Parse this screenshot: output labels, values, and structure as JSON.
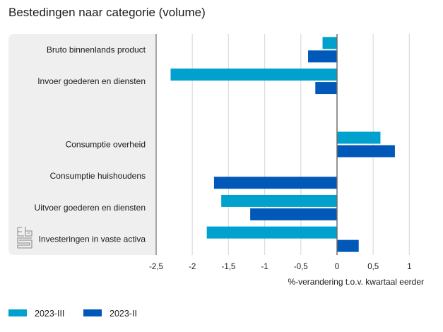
{
  "chart_data": {
    "type": "bar",
    "orientation": "horizontal",
    "title": "Bestedingen naar categorie (volume)",
    "xlabel": "%-verandering t.o.v. kwartaal eerder",
    "ylabel": "",
    "xlim": [
      -2.5,
      1
    ],
    "xticks": [
      -2.5,
      -2,
      -1.5,
      -1,
      -0.5,
      0,
      0.5,
      1
    ],
    "xtick_labels": [
      "-2,5",
      "-2",
      "-1,5",
      "-1",
      "-0,5",
      "0",
      "0,5",
      "1"
    ],
    "grid": true,
    "legend_position": "bottom-left",
    "categories": [
      "Bruto binnenlands product",
      "Invoer goederen en diensten",
      "",
      "Consumptie overheid",
      "Consumptie huishoudens",
      "Uitvoer goederen en diensten",
      "Investeringen in vaste activa"
    ],
    "series": [
      {
        "name": "2023-III",
        "color": "#00a1cd",
        "values": [
          -0.2,
          -2.3,
          null,
          0.6,
          0.0,
          -1.6,
          -1.8
        ]
      },
      {
        "name": "2023-II",
        "color": "#0058b8",
        "values": [
          -0.4,
          -0.3,
          null,
          0.8,
          -1.7,
          -1.2,
          0.3
        ]
      }
    ]
  },
  "logo": {
    "icon": "cbs-logo-icon"
  },
  "colors": {
    "panel": "#efefef",
    "grid": "#dcdcdc",
    "zero_line": "#6e6e6e",
    "axis_line": "#8c8c8c"
  }
}
